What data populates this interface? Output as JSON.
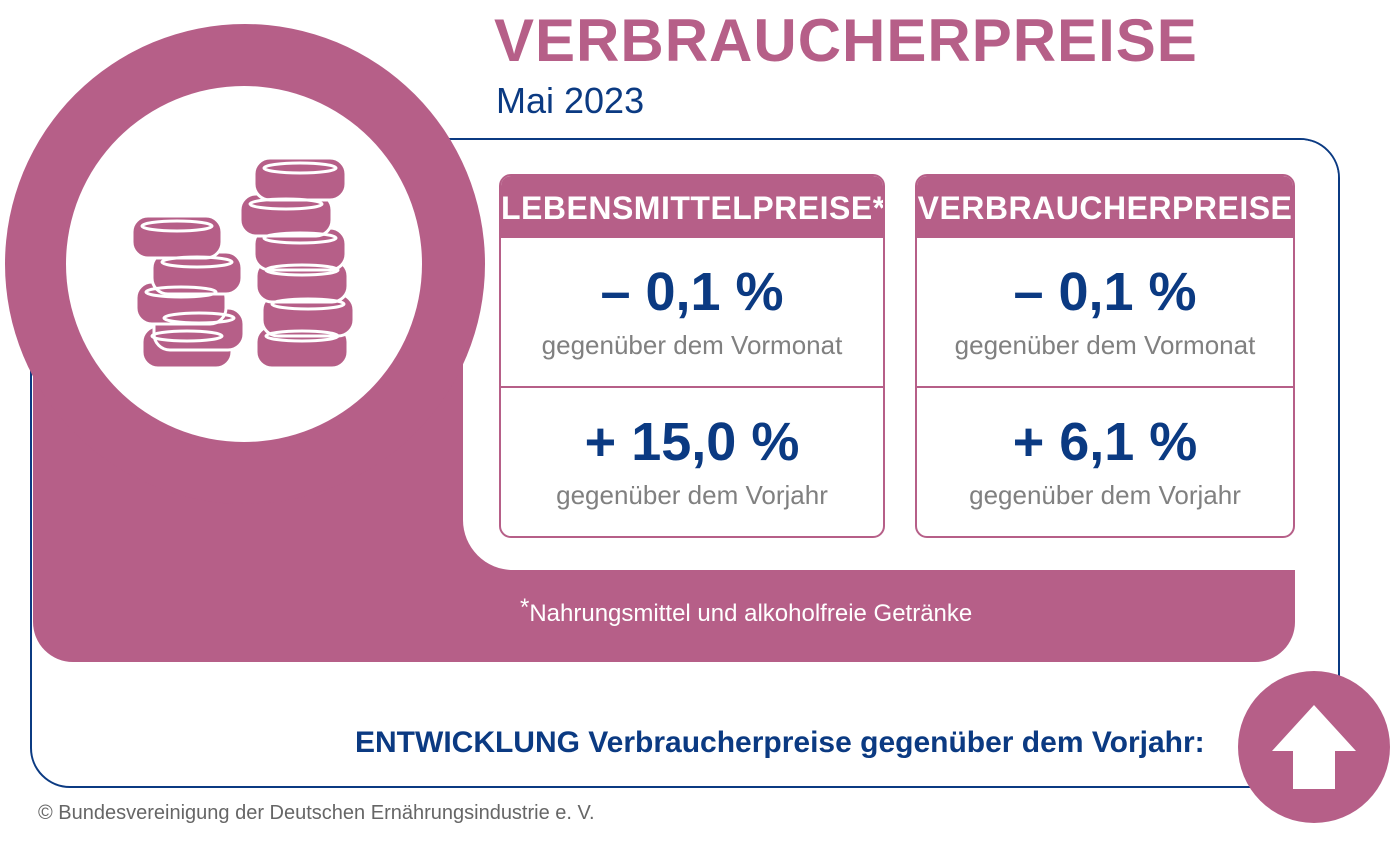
{
  "header": {
    "title": "VERBRAUCHERPREISE",
    "period": "Mai 2023"
  },
  "cards": [
    {
      "heading": "LEBENSMITTELPREISE*",
      "month_value": "– 0,1 %",
      "month_label": "gegenüber dem Vormonat",
      "year_value": "+ 15,0 %",
      "year_label": "gegenüber dem Vorjahr"
    },
    {
      "heading": "VERBRAUCHERPREISE",
      "month_value": "– 0,1 %",
      "month_label": "gegenüber dem Vormonat",
      "year_value": "+ 6,1 %",
      "year_label": "gegenüber dem Vorjahr"
    }
  ],
  "footnote": {
    "marker": "*",
    "text": "Nahrungsmittel und alkoholfreie Getränke"
  },
  "trend": {
    "label": "ENTWICKLUNG Verbraucherpreise gegenüber dem Vorjahr:",
    "direction_icon": "arrow-up-icon"
  },
  "copyright": "© Bundesvereinigung der Deutschen Ernährungsindustrie e. V.",
  "colors": {
    "accent": "#b65f88",
    "primary_text": "#0b3a82",
    "secondary_text": "#808080"
  }
}
